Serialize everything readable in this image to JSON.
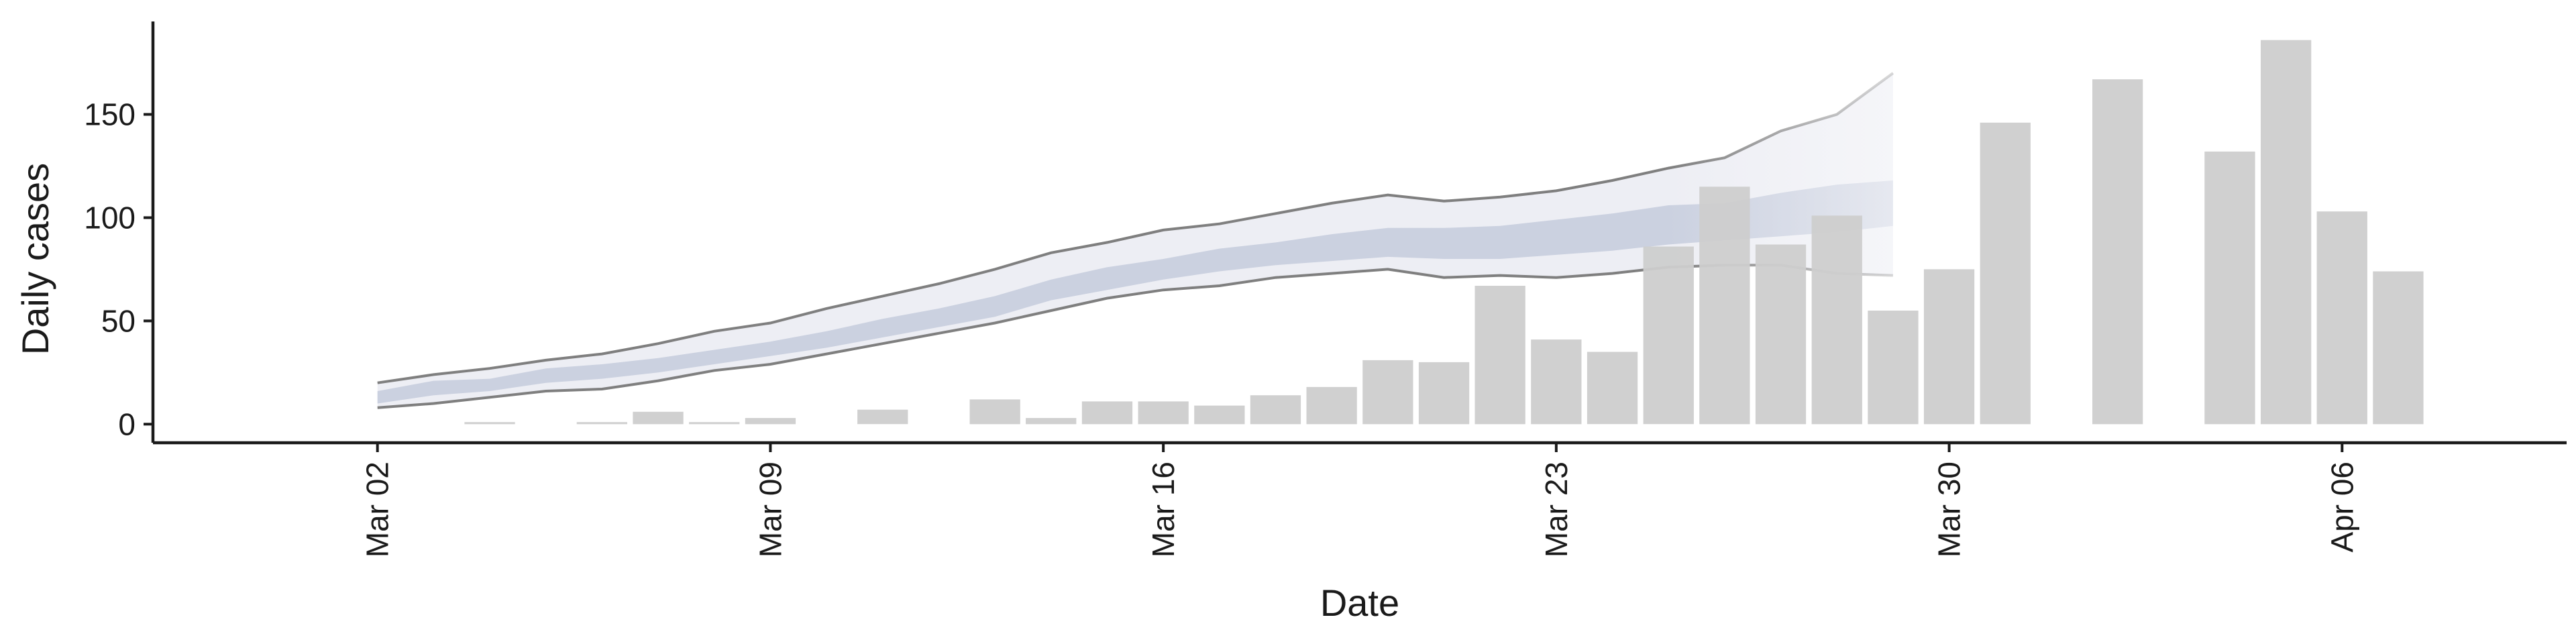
{
  "chart_data": {
    "type": "bar",
    "xlabel": "Date",
    "ylabel": "Daily cases",
    "x_ticks": [
      {
        "date": "2020-03-02",
        "label": "Mar 02"
      },
      {
        "date": "2020-03-09",
        "label": "Mar 09"
      },
      {
        "date": "2020-03-16",
        "label": "Mar 16"
      },
      {
        "date": "2020-03-23",
        "label": "Mar 23"
      },
      {
        "date": "2020-03-30",
        "label": "Mar 30"
      },
      {
        "date": "2020-04-06",
        "label": "Apr 06"
      }
    ],
    "y_ticks": [
      0,
      50,
      100,
      150
    ],
    "xlim": [
      "2020-02-27",
      "2020-04-10"
    ],
    "ylim": [
      -9,
      195
    ],
    "grid": false,
    "legend": "none",
    "colors": {
      "bars": "#cdcdcd",
      "band_outer": "#edeef4",
      "band_inner": "#cbd1e0",
      "bound_lines": "#7f7f7f",
      "forecast_fade": "#f5f5f8",
      "axis": "#1a1a1a"
    },
    "bars": [
      {
        "date": "2020-03-04",
        "value": 1
      },
      {
        "date": "2020-03-06",
        "value": 1
      },
      {
        "date": "2020-03-07",
        "value": 6
      },
      {
        "date": "2020-03-08",
        "value": 1
      },
      {
        "date": "2020-03-09",
        "value": 3
      },
      {
        "date": "2020-03-11",
        "value": 7
      },
      {
        "date": "2020-03-13",
        "value": 12
      },
      {
        "date": "2020-03-14",
        "value": 3
      },
      {
        "date": "2020-03-15",
        "value": 11
      },
      {
        "date": "2020-03-16",
        "value": 11
      },
      {
        "date": "2020-03-17",
        "value": 9
      },
      {
        "date": "2020-03-18",
        "value": 14
      },
      {
        "date": "2020-03-19",
        "value": 18
      },
      {
        "date": "2020-03-20",
        "value": 31
      },
      {
        "date": "2020-03-21",
        "value": 30
      },
      {
        "date": "2020-03-22",
        "value": 67
      },
      {
        "date": "2020-03-23",
        "value": 41
      },
      {
        "date": "2020-03-24",
        "value": 35
      },
      {
        "date": "2020-03-25",
        "value": 86
      },
      {
        "date": "2020-03-26",
        "value": 115
      },
      {
        "date": "2020-03-27",
        "value": 87
      },
      {
        "date": "2020-03-28",
        "value": 101
      },
      {
        "date": "2020-03-29",
        "value": 55
      },
      {
        "date": "2020-03-30",
        "value": 75
      },
      {
        "date": "2020-03-31",
        "value": 146
      },
      {
        "date": "2020-04-02",
        "value": 167
      },
      {
        "date": "2020-04-04",
        "value": 132
      },
      {
        "date": "2020-04-05",
        "value": 186
      },
      {
        "date": "2020-04-06",
        "value": 103
      },
      {
        "date": "2020-04-07",
        "value": 74
      }
    ],
    "estimate_band": {
      "dates": [
        "2020-03-02",
        "2020-03-03",
        "2020-03-04",
        "2020-03-05",
        "2020-03-06",
        "2020-03-07",
        "2020-03-08",
        "2020-03-09",
        "2020-03-10",
        "2020-03-11",
        "2020-03-12",
        "2020-03-13",
        "2020-03-14",
        "2020-03-15",
        "2020-03-16",
        "2020-03-17",
        "2020-03-18",
        "2020-03-19",
        "2020-03-20",
        "2020-03-21",
        "2020-03-22",
        "2020-03-23",
        "2020-03-24",
        "2020-03-25",
        "2020-03-26",
        "2020-03-27",
        "2020-03-28",
        "2020-03-29"
      ],
      "upper": [
        20,
        24,
        27,
        31,
        34,
        39,
        45,
        49,
        56,
        62,
        68,
        75,
        83,
        88,
        94,
        97,
        102,
        107,
        111,
        108,
        110,
        113,
        118,
        124,
        129,
        142,
        150,
        170
      ],
      "lower": [
        8,
        10,
        13,
        16,
        17,
        21,
        26,
        29,
        34,
        39,
        44,
        49,
        55,
        61,
        65,
        67,
        71,
        73,
        75,
        71,
        72,
        71,
        73,
        76,
        77,
        77,
        73,
        72
      ],
      "inner_upper": [
        16,
        21,
        22,
        27,
        29,
        32,
        36,
        40,
        45,
        51,
        56,
        62,
        70,
        76,
        80,
        85,
        88,
        92,
        95,
        95,
        96,
        99,
        102,
        106,
        107,
        112,
        116,
        118
      ],
      "inner_lower": [
        10,
        14,
        16,
        20,
        22,
        25,
        29,
        33,
        37,
        42,
        47,
        52,
        60,
        65,
        70,
        74,
        77,
        79,
        81,
        80,
        80,
        82,
        84,
        87,
        89,
        91,
        93,
        96
      ]
    }
  }
}
